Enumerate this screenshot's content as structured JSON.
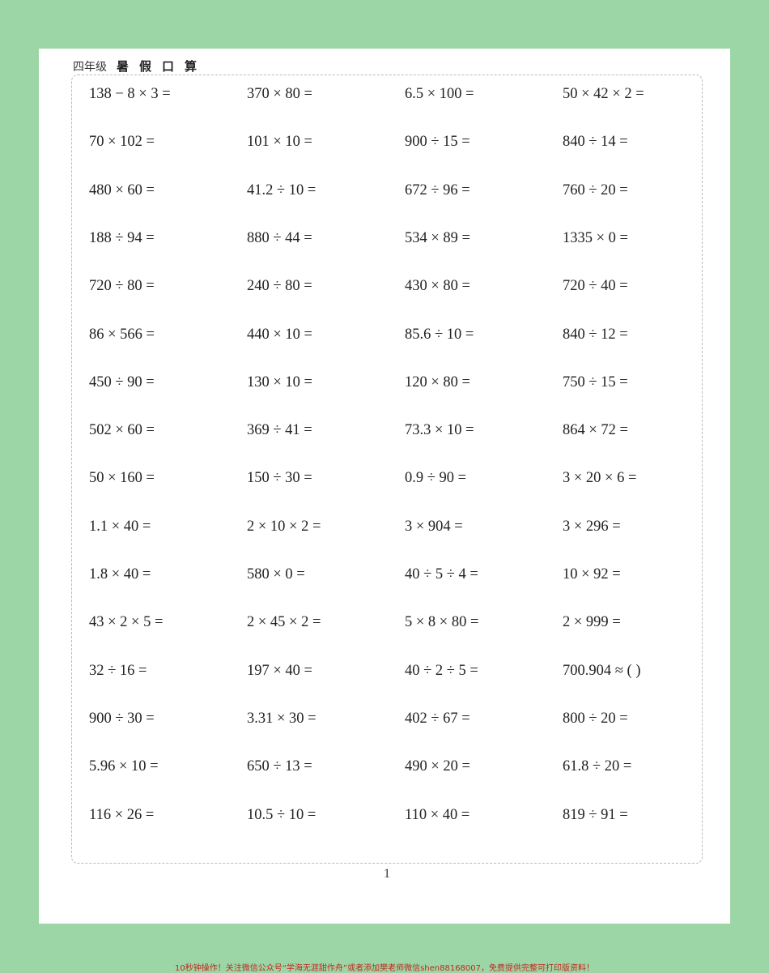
{
  "header": {
    "grade": "四年级",
    "title": "暑假口算"
  },
  "colors": {
    "background": "#9dd6a6",
    "page": "#ffffff",
    "footer_text": "#c0281e"
  },
  "problems": [
    [
      "138 − 8 × 3 =",
      "370 × 80 =",
      "6.5 × 100 =",
      "50 × 42 × 2 ="
    ],
    [
      "70 × 102 =",
      "101 × 10 =",
      "900 ÷ 15 =",
      "840 ÷ 14 ="
    ],
    [
      "480 × 60 =",
      "41.2 ÷ 10 =",
      "672 ÷ 96 =",
      "760 ÷ 20 ="
    ],
    [
      "188 ÷ 94 =",
      "880 ÷ 44 =",
      "534 × 89 =",
      "1335 × 0 ="
    ],
    [
      "720 ÷ 80 =",
      "240 ÷ 80 =",
      "430 × 80 =",
      "720 ÷ 40 ="
    ],
    [
      "86 × 566 =",
      "440 × 10 =",
      "85.6 ÷ 10 =",
      "840 ÷ 12 ="
    ],
    [
      "450 ÷ 90 =",
      "130 × 10 =",
      "120 × 80 =",
      "750 ÷ 15 ="
    ],
    [
      "502 × 60 =",
      "369 ÷ 41 =",
      "73.3 × 10 =",
      "864 × 72 ="
    ],
    [
      "50 × 160 =",
      "150 ÷ 30 =",
      "0.9 ÷ 90 =",
      "3 × 20 × 6 ="
    ],
    [
      "1.1 × 40 =",
      "2 × 10 × 2 =",
      "3 × 904 =",
      "3 × 296 ="
    ],
    [
      "1.8 × 40 =",
      "580 × 0 =",
      "40 ÷ 5 ÷ 4 =",
      "10 × 92 ="
    ],
    [
      "43 × 2 × 5 =",
      "2 × 45 × 2 =",
      "5 × 8 × 80 =",
      "2 × 999 ="
    ],
    [
      "32 ÷ 16 =",
      "197 × 40 =",
      "40 ÷ 2 ÷ 5 =",
      "700.904 ≈ (      )"
    ],
    [
      "900 ÷ 30 =",
      "3.31 × 30 =",
      "402 ÷ 67 =",
      "800 ÷ 20 ="
    ],
    [
      "5.96 × 10 =",
      "650 ÷ 13 =",
      "490 × 20 =",
      "61.8 ÷ 20 ="
    ],
    [
      "116 × 26 =",
      "10.5 ÷ 10 =",
      "110 × 40 =",
      "819 ÷ 91 ="
    ]
  ],
  "page_number": "1",
  "footer": "10秒钟操作！关注微信公众号“学海无涯甜作舟”或者添加樊老师微信shen88168007，免费提供完整可打印版资料！"
}
